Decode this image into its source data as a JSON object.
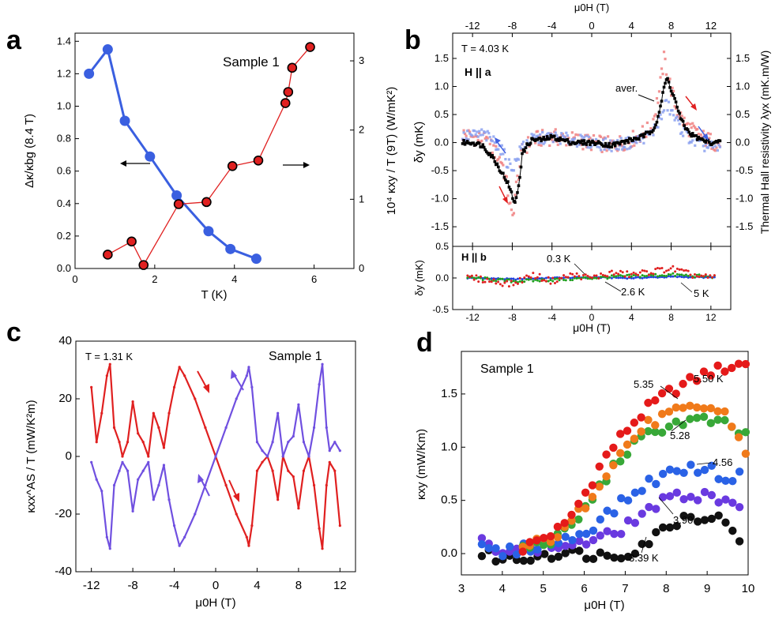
{
  "panel_labels": [
    "a",
    "b",
    "c",
    "d"
  ],
  "chart_data": [
    {
      "id": "a",
      "type": "line",
      "xlabel": "T (K)",
      "ylabel": "Δκ/κbg (8.4 T)",
      "y2label": "10⁴ κxy / T (9T)  (W/mK²)",
      "xlim": [
        0,
        7
      ],
      "ylim": [
        0,
        1.45
      ],
      "y2lim": [
        0,
        3.4
      ],
      "xticks": [
        "0",
        "2",
        "4",
        "6"
      ],
      "yticks": [
        "0.0",
        "0.2",
        "0.4",
        "0.6",
        "0.8",
        "1.0",
        "1.2",
        "1.4"
      ],
      "y2ticks": [
        "0",
        "1",
        "2",
        "3"
      ],
      "annotation": "Sample 1",
      "series": [
        {
          "name": "Δκ/κbg",
          "axis": "left",
          "color": "#3a5fe0",
          "x": [
            0.35,
            0.82,
            1.25,
            1.88,
            2.55,
            3.35,
            3.9,
            4.55
          ],
          "y": [
            1.2,
            1.35,
            0.91,
            0.69,
            0.45,
            0.23,
            0.12,
            0.06
          ]
        },
        {
          "name": "κxy/T",
          "axis": "right",
          "color": "#e02020",
          "x": [
            0.82,
            1.42,
            1.72,
            2.6,
            3.3,
            3.95,
            4.6,
            5.28,
            5.35,
            5.45,
            5.9
          ],
          "y": [
            0.2,
            0.39,
            0.05,
            0.93,
            0.96,
            1.48,
            1.56,
            2.39,
            2.55,
            2.9,
            3.2
          ]
        }
      ]
    },
    {
      "id": "b-top",
      "type": "scatter",
      "xlabel_top": "μ0H (T)",
      "ylabel": "δy (mK)",
      "y2label": "Thermal Hall resistivity λyx (mK.m/W)",
      "xlim": [
        -14,
        14
      ],
      "ylim": [
        -1.85,
        1.95
      ],
      "xticks": [
        "-12",
        "-8",
        "-4",
        "0",
        "4",
        "8",
        "12"
      ],
      "yticks": [
        "-1.5",
        "-1.0",
        "-0.5",
        "0.0",
        "0.5",
        "1.0",
        "1.5"
      ],
      "temperature_label": "T = 4.03 K",
      "field_label": "H || a",
      "avg_label": "aver.",
      "series": [
        {
          "name": "sweep up (red)",
          "color": "#f08080",
          "x": [
            -13,
            -11,
            -10,
            -9,
            -8.5,
            -8,
            -7.7,
            -7,
            -6,
            -4,
            -2,
            0,
            2,
            4,
            6,
            6.8,
            7.3,
            7.8,
            8.5,
            9.5,
            11,
            13
          ],
          "y": [
            0.15,
            0.05,
            -0.1,
            -0.35,
            -0.8,
            -1.4,
            -0.9,
            -0.15,
            0.05,
            0.1,
            0.05,
            0.0,
            -0.05,
            0.05,
            0.25,
            0.9,
            1.5,
            1.1,
            0.6,
            0.3,
            0.1,
            -0.05
          ]
        },
        {
          "name": "sweep down (blue)",
          "color": "#8aa0f0",
          "x": [
            -13,
            -11,
            -10,
            -9,
            -8.5,
            -8,
            -7.5,
            -7,
            -6,
            -4,
            -2,
            0,
            2,
            4,
            6,
            7,
            7.5,
            8,
            9,
            10,
            11,
            13
          ],
          "y": [
            0.1,
            0.15,
            0.05,
            -0.15,
            -0.35,
            -0.45,
            -0.3,
            -0.05,
            0.05,
            0.1,
            0.05,
            0.0,
            -0.05,
            0.0,
            0.15,
            0.45,
            0.7,
            0.55,
            0.25,
            0.05,
            -0.05,
            -0.1
          ]
        },
        {
          "name": "average",
          "color": "#000000",
          "x": [
            -13,
            -12,
            -11,
            -10,
            -9,
            -8.5,
            -8,
            -7.7,
            -7.3,
            -7,
            -6.5,
            -6,
            -5,
            -4,
            -3,
            -2,
            -1,
            0,
            1,
            2,
            3,
            4,
            5,
            6,
            6.5,
            7,
            7.3,
            7.6,
            8,
            8.5,
            9,
            9.5,
            10,
            11,
            12,
            13
          ],
          "y": [
            0.0,
            0.0,
            -0.05,
            -0.25,
            -0.55,
            -0.7,
            -0.95,
            -1.1,
            -0.7,
            -0.2,
            -0.05,
            0.05,
            0.05,
            0.1,
            0.05,
            0.0,
            0.0,
            0.0,
            -0.02,
            -0.05,
            0.0,
            0.05,
            0.1,
            0.2,
            0.35,
            0.7,
            1.0,
            1.15,
            0.95,
            0.7,
            0.4,
            0.25,
            0.15,
            0.05,
            0.0,
            0.0
          ]
        }
      ]
    },
    {
      "id": "b-bottom",
      "type": "scatter",
      "xlabel": "μ0H (T)",
      "ylabel": "δy (mK)",
      "xlim": [
        -14,
        14
      ],
      "ylim": [
        -0.5,
        0.5
      ],
      "xticks": [
        "-12",
        "-8",
        "-4",
        "0",
        "4",
        "8",
        "12"
      ],
      "yticks": [
        "-0.5",
        "0.0",
        "0.5"
      ],
      "field_label": "H || b",
      "series_labels": [
        "0.3 K",
        "2.6 K",
        "5 K"
      ],
      "series": [
        {
          "name": "0.3 K",
          "color": "#2040e0",
          "x": [
            -12,
            -8,
            -4,
            0,
            4,
            8,
            12
          ],
          "y": [
            0.0,
            -0.02,
            0.0,
            0.01,
            0.0,
            0.02,
            0.01
          ]
        },
        {
          "name": "2.6 K",
          "color": "#20a020",
          "x": [
            -12,
            -8,
            -4,
            0,
            4,
            8,
            12
          ],
          "y": [
            0.0,
            -0.05,
            -0.03,
            0.0,
            0.03,
            0.05,
            0.02
          ]
        },
        {
          "name": "5 K",
          "color": "#e02020",
          "x": [
            -12,
            -10,
            -8,
            -6,
            -4,
            -2,
            0,
            2,
            4,
            6,
            8,
            10,
            12
          ],
          "y": [
            0.0,
            -0.05,
            -0.1,
            0.05,
            -0.05,
            0.05,
            0.0,
            0.08,
            0.05,
            0.1,
            0.15,
            0.05,
            0.0
          ]
        }
      ]
    },
    {
      "id": "c",
      "type": "line",
      "xlabel": "μ0H (T)",
      "ylabel": "κxx^AS / T  (mW/K²m)",
      "xlim": [
        -13.5,
        13.5
      ],
      "ylim": [
        -40,
        40
      ],
      "xticks": [
        "-12",
        "-8",
        "-4",
        "0",
        "4",
        "8",
        "12"
      ],
      "yticks": [
        "-40",
        "-20",
        "0",
        "20",
        "40"
      ],
      "annotation": "T = 1.31 K",
      "annotation2": "Sample 1",
      "series": [
        {
          "name": "sweep red",
          "color": "#e02020",
          "x": [
            -12,
            -11.5,
            -11,
            -10.5,
            -10.2,
            -9.8,
            -9.3,
            -9,
            -8.5,
            -8,
            -7.5,
            -7,
            -6.5,
            -6,
            -5.5,
            -5,
            -4.5,
            -4,
            -3.5,
            -3,
            -2,
            -1,
            0,
            1,
            2,
            3,
            3.2,
            3.5,
            4,
            4.5,
            5,
            5.5,
            6,
            6.5,
            7,
            7.5,
            8,
            8.5,
            9,
            9.5,
            10,
            10.3,
            10.7,
            11,
            11.5,
            12
          ],
          "y": [
            24,
            5,
            15,
            28,
            32,
            10,
            5,
            0,
            5,
            19,
            8,
            5,
            0,
            15,
            10,
            3,
            15,
            24,
            31,
            28,
            20,
            10,
            0,
            -10,
            -20,
            -28,
            -31,
            -24,
            -5,
            -2,
            0,
            -5,
            -15,
            0,
            -5,
            -7,
            -18,
            -5,
            0,
            -10,
            -25,
            -32,
            -10,
            -2,
            -5,
            -24
          ]
        },
        {
          "name": "sweep blue",
          "color": "#7050e0",
          "x": [
            -12,
            -11.5,
            -11,
            -10.5,
            -10.2,
            -9.8,
            -9.3,
            -9,
            -8.5,
            -8,
            -7.5,
            -7,
            -6.5,
            -6,
            -5.5,
            -5,
            -4.5,
            -4,
            -3.5,
            -3,
            -2,
            -1,
            0,
            1,
            2,
            3,
            3.2,
            3.5,
            4,
            4.5,
            5,
            5.5,
            6,
            6.5,
            7,
            7.5,
            8,
            8.5,
            9,
            9.5,
            10,
            10.3,
            10.7,
            11,
            11.5,
            12
          ],
          "y": [
            -2,
            -8,
            -12,
            -28,
            -32,
            -10,
            -5,
            -2,
            -5,
            -19,
            -8,
            -5,
            -2,
            -15,
            -10,
            -3,
            -15,
            -24,
            -31,
            -28,
            -20,
            -10,
            0,
            10,
            20,
            28,
            31,
            24,
            5,
            2,
            0,
            5,
            15,
            0,
            5,
            7,
            18,
            5,
            0,
            10,
            25,
            32,
            10,
            2,
            5,
            2
          ]
        }
      ]
    },
    {
      "id": "d",
      "type": "scatter",
      "xlabel": "μ0H (T)",
      "ylabel": "κxy (mW/Km)",
      "xlim": [
        3,
        10
      ],
      "ylim": [
        -0.2,
        1.9
      ],
      "xticks": [
        "3",
        "4",
        "5",
        "6",
        "7",
        "8",
        "9",
        "10"
      ],
      "yticks": [
        "0.0",
        "0.5",
        "1.0",
        "1.5"
      ],
      "annotation": "Sample 1",
      "series_labels": [
        "5.50 K",
        "5.35",
        "5.28",
        "4.56",
        "3.90",
        "3.39 K"
      ],
      "series": [
        {
          "name": "5.50 K",
          "color": "#e51a1a",
          "x": [
            4.5,
            5,
            5.5,
            6,
            6.5,
            7,
            7.5,
            8,
            8.5,
            9,
            9.5,
            10
          ],
          "y": [
            0.05,
            0.15,
            0.25,
            0.55,
            0.9,
            1.15,
            1.35,
            1.5,
            1.6,
            1.7,
            1.75,
            1.8
          ]
        },
        {
          "name": "5.35",
          "color": "#f07a1a",
          "x": [
            4.5,
            5,
            5.5,
            6,
            6.5,
            7,
            7.5,
            8,
            8.5,
            9,
            9.5,
            10
          ],
          "y": [
            0.05,
            0.12,
            0.2,
            0.45,
            0.75,
            1.0,
            1.2,
            1.3,
            1.35,
            1.38,
            1.3,
            0.9
          ]
        },
        {
          "name": "5.28",
          "color": "#38a838",
          "x": [
            4.5,
            5,
            5.5,
            6,
            6.5,
            7,
            7.5,
            8,
            8.5,
            9,
            9.5,
            10
          ],
          "y": [
            0.05,
            0.1,
            0.18,
            0.4,
            0.7,
            0.95,
            1.1,
            1.2,
            1.25,
            1.25,
            1.2,
            1.1
          ]
        },
        {
          "name": "4.56",
          "color": "#2a62e6",
          "x": [
            3.5,
            4,
            4.5,
            5,
            5.5,
            6,
            6.5,
            7,
            7.5,
            8,
            8.5,
            9,
            9.5,
            10
          ],
          "y": [
            0.05,
            0.0,
            0.05,
            0.08,
            0.12,
            0.2,
            0.35,
            0.5,
            0.65,
            0.75,
            0.8,
            0.8,
            0.7,
            0.75
          ]
        },
        {
          "name": "3.90",
          "color": "#6a3ae0",
          "x": [
            3.5,
            4,
            4.5,
            5,
            5.5,
            6,
            6.5,
            7,
            7.5,
            8,
            8.5,
            9,
            9.5,
            10
          ],
          "y": [
            0.1,
            0.05,
            0.05,
            0.05,
            0.08,
            0.1,
            0.15,
            0.25,
            0.4,
            0.5,
            0.55,
            0.55,
            0.5,
            0.45
          ]
        },
        {
          "name": "3.39 K",
          "color": "#111111",
          "x": [
            3.5,
            4,
            4.5,
            5,
            5.5,
            6,
            6.5,
            7,
            7.5,
            8,
            8.5,
            9,
            9.5,
            10
          ],
          "y": [
            0.0,
            -0.05,
            -0.05,
            0.0,
            0.0,
            0.0,
            -0.02,
            0.0,
            0.1,
            0.25,
            0.35,
            0.35,
            0.3,
            0.05
          ]
        }
      ]
    }
  ]
}
